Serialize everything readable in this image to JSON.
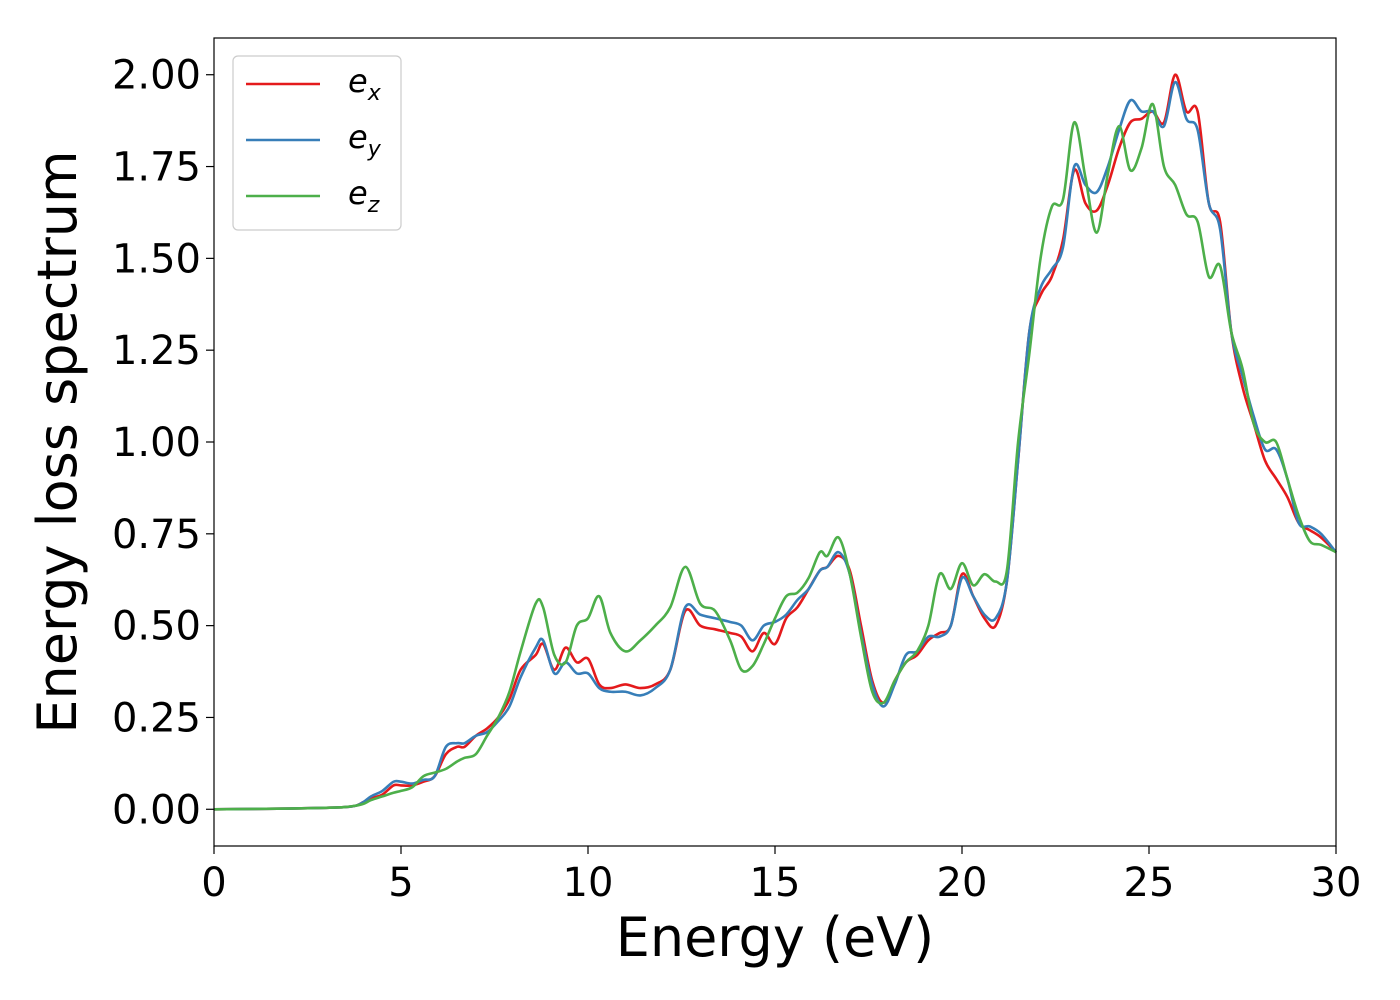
{
  "chart_data": {
    "type": "line",
    "xlabel": "Energy (eV)",
    "ylabel": "Energy loss spectrum",
    "xlim": [
      0,
      30
    ],
    "ylim": [
      -0.1,
      2.1
    ],
    "xticks": [
      "0",
      "5",
      "10",
      "15",
      "20",
      "25",
      "30"
    ],
    "yticks": [
      "0.00",
      "0.25",
      "0.50",
      "0.75",
      "1.00",
      "1.25",
      "1.50",
      "1.75",
      "2.00"
    ],
    "legend_position": "top-left",
    "grid": false,
    "series": [
      {
        "name": "e",
        "subscript": "x",
        "color": "#e41a1c",
        "x": [
          0,
          2,
          3,
          3.5,
          3.8,
          4.0,
          4.2,
          4.5,
          4.8,
          5.0,
          5.3,
          5.6,
          5.9,
          6.2,
          6.5,
          6.7,
          7.0,
          7.3,
          7.6,
          7.9,
          8.2,
          8.6,
          8.8,
          9.1,
          9.4,
          9.7,
          10.0,
          10.3,
          10.6,
          11.0,
          11.4,
          11.8,
          12.2,
          12.6,
          13.0,
          13.4,
          13.8,
          14.1,
          14.4,
          14.7,
          15.0,
          15.3,
          15.6,
          15.9,
          16.2,
          16.4,
          16.7,
          17.0,
          17.3,
          17.6,
          17.9,
          18.2,
          18.5,
          18.8,
          19.1,
          19.4,
          19.7,
          20.0,
          20.3,
          20.6,
          20.9,
          21.2,
          21.5,
          21.8,
          22.1,
          22.4,
          22.7,
          23.0,
          23.3,
          23.6,
          23.9,
          24.2,
          24.5,
          24.8,
          25.1,
          25.4,
          25.7,
          26.0,
          26.3,
          26.6,
          26.9,
          27.2,
          27.5,
          27.8,
          28.1,
          28.4,
          28.7,
          29.0,
          29.3,
          29.6,
          30.0
        ],
        "values": [
          0,
          0.002,
          0.004,
          0.006,
          0.01,
          0.02,
          0.03,
          0.04,
          0.065,
          0.065,
          0.065,
          0.075,
          0.09,
          0.15,
          0.17,
          0.17,
          0.2,
          0.22,
          0.25,
          0.3,
          0.38,
          0.42,
          0.45,
          0.38,
          0.44,
          0.4,
          0.41,
          0.34,
          0.33,
          0.34,
          0.33,
          0.34,
          0.38,
          0.54,
          0.5,
          0.49,
          0.48,
          0.47,
          0.43,
          0.48,
          0.45,
          0.52,
          0.55,
          0.6,
          0.65,
          0.66,
          0.69,
          0.65,
          0.5,
          0.35,
          0.29,
          0.35,
          0.4,
          0.42,
          0.46,
          0.48,
          0.5,
          0.64,
          0.58,
          0.52,
          0.5,
          0.62,
          0.95,
          1.3,
          1.4,
          1.45,
          1.55,
          1.74,
          1.65,
          1.63,
          1.7,
          1.8,
          1.87,
          1.88,
          1.9,
          1.87,
          2.0,
          1.9,
          1.9,
          1.65,
          1.6,
          1.3,
          1.15,
          1.05,
          0.95,
          0.9,
          0.85,
          0.78,
          0.76,
          0.74,
          0.7
        ]
      },
      {
        "name": "e",
        "subscript": "y",
        "color": "#377eb8",
        "x": [
          0,
          2,
          3,
          3.5,
          3.8,
          4.0,
          4.2,
          4.5,
          4.8,
          5.0,
          5.3,
          5.6,
          5.9,
          6.2,
          6.5,
          6.7,
          7.0,
          7.3,
          7.6,
          7.9,
          8.2,
          8.6,
          8.8,
          9.1,
          9.4,
          9.7,
          10.0,
          10.3,
          10.6,
          11.0,
          11.4,
          11.8,
          12.2,
          12.6,
          13.0,
          13.4,
          13.8,
          14.1,
          14.4,
          14.7,
          15.0,
          15.3,
          15.6,
          15.9,
          16.2,
          16.4,
          16.7,
          17.0,
          17.3,
          17.6,
          17.9,
          18.2,
          18.5,
          18.8,
          19.1,
          19.4,
          19.7,
          20.0,
          20.3,
          20.6,
          20.9,
          21.2,
          21.5,
          21.8,
          22.1,
          22.4,
          22.7,
          23.0,
          23.3,
          23.6,
          23.9,
          24.2,
          24.5,
          24.8,
          25.1,
          25.4,
          25.7,
          26.0,
          26.3,
          26.6,
          26.9,
          27.2,
          27.5,
          27.8,
          28.1,
          28.4,
          28.7,
          29.0,
          29.3,
          29.6,
          30.0
        ],
        "values": [
          0,
          0.002,
          0.004,
          0.006,
          0.01,
          0.02,
          0.035,
          0.05,
          0.075,
          0.075,
          0.07,
          0.08,
          0.09,
          0.17,
          0.18,
          0.18,
          0.2,
          0.21,
          0.24,
          0.28,
          0.36,
          0.44,
          0.46,
          0.37,
          0.4,
          0.37,
          0.37,
          0.33,
          0.32,
          0.32,
          0.31,
          0.33,
          0.38,
          0.55,
          0.53,
          0.52,
          0.51,
          0.5,
          0.46,
          0.5,
          0.51,
          0.53,
          0.57,
          0.6,
          0.65,
          0.66,
          0.7,
          0.64,
          0.48,
          0.34,
          0.28,
          0.34,
          0.42,
          0.43,
          0.47,
          0.47,
          0.5,
          0.63,
          0.58,
          0.53,
          0.52,
          0.62,
          0.95,
          1.3,
          1.42,
          1.47,
          1.53,
          1.75,
          1.7,
          1.68,
          1.75,
          1.85,
          1.93,
          1.9,
          1.9,
          1.86,
          1.98,
          1.88,
          1.85,
          1.65,
          1.58,
          1.3,
          1.18,
          1.07,
          0.98,
          0.98,
          0.9,
          0.78,
          0.77,
          0.75,
          0.7
        ]
      },
      {
        "name": "e",
        "subscript": "z",
        "color": "#4daf4a",
        "x": [
          0,
          2,
          3,
          3.5,
          3.8,
          4.0,
          4.2,
          4.5,
          4.8,
          5.0,
          5.3,
          5.6,
          5.9,
          6.2,
          6.5,
          6.7,
          7.0,
          7.3,
          7.6,
          7.9,
          8.2,
          8.6,
          8.8,
          9.1,
          9.4,
          9.7,
          10.0,
          10.3,
          10.6,
          11.0,
          11.4,
          11.8,
          12.2,
          12.6,
          13.0,
          13.4,
          13.8,
          14.1,
          14.4,
          14.7,
          15.0,
          15.3,
          15.6,
          15.9,
          16.2,
          16.4,
          16.7,
          17.0,
          17.3,
          17.6,
          17.9,
          18.2,
          18.5,
          18.8,
          19.1,
          19.4,
          19.7,
          20.0,
          20.3,
          20.6,
          20.9,
          21.2,
          21.5,
          21.8,
          22.1,
          22.4,
          22.7,
          23.0,
          23.3,
          23.6,
          23.9,
          24.2,
          24.5,
          24.8,
          25.1,
          25.4,
          25.7,
          26.0,
          26.3,
          26.6,
          26.9,
          27.2,
          27.5,
          27.8,
          28.1,
          28.4,
          28.7,
          29.0,
          29.3,
          29.6,
          30.0
        ],
        "values": [
          0,
          0.002,
          0.004,
          0.006,
          0.01,
          0.015,
          0.025,
          0.035,
          0.045,
          0.05,
          0.06,
          0.09,
          0.1,
          0.11,
          0.13,
          0.14,
          0.15,
          0.2,
          0.25,
          0.32,
          0.43,
          0.56,
          0.55,
          0.42,
          0.4,
          0.5,
          0.52,
          0.58,
          0.48,
          0.43,
          0.46,
          0.5,
          0.55,
          0.66,
          0.56,
          0.54,
          0.46,
          0.38,
          0.39,
          0.45,
          0.52,
          0.58,
          0.59,
          0.63,
          0.7,
          0.69,
          0.74,
          0.64,
          0.47,
          0.32,
          0.29,
          0.35,
          0.4,
          0.43,
          0.5,
          0.64,
          0.6,
          0.67,
          0.61,
          0.64,
          0.62,
          0.65,
          1.0,
          1.24,
          1.5,
          1.64,
          1.66,
          1.87,
          1.72,
          1.57,
          1.73,
          1.86,
          1.74,
          1.8,
          1.92,
          1.75,
          1.7,
          1.62,
          1.6,
          1.45,
          1.48,
          1.3,
          1.2,
          1.05,
          1.0,
          1.0,
          0.9,
          0.8,
          0.73,
          0.72,
          0.7
        ]
      }
    ]
  }
}
